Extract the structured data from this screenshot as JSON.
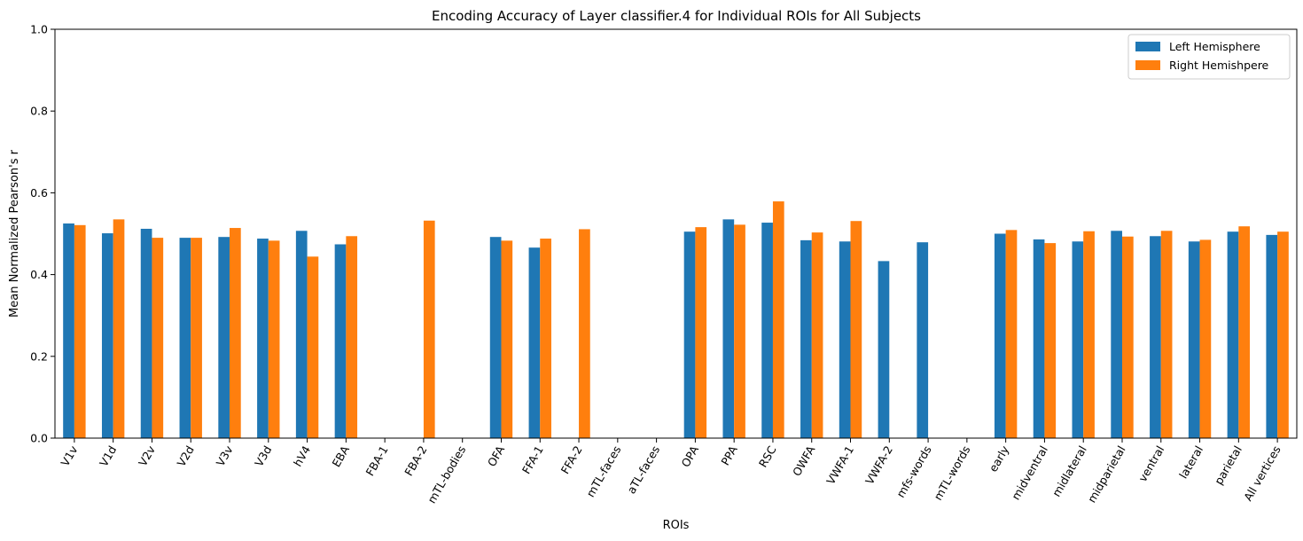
{
  "chart_data": {
    "type": "bar",
    "title": "Encoding Accuracy of Layer classifier.4 for Individual ROIs for All Subjects",
    "xlabel": "ROIs",
    "ylabel": "Mean Normalized Pearson's r",
    "ylim": [
      0,
      1.0
    ],
    "yticks": [
      "0.0",
      "0.2",
      "0.4",
      "0.6",
      "0.8",
      "1.0"
    ],
    "grid": false,
    "legend_position": "top-right",
    "categories": [
      "V1v",
      "V1d",
      "V2v",
      "V2d",
      "V3v",
      "V3d",
      "hV4",
      "EBA",
      "FBA-1",
      "FBA-2",
      "mTL-bodies",
      "OFA",
      "FFA-1",
      "FFA-2",
      "mTL-faces",
      "aTL-faces",
      "OPA",
      "PPA",
      "RSC",
      "OWFA",
      "VWFA-1",
      "VWFA-2",
      "mfs-words",
      "mTL-words",
      "early",
      "midventral",
      "midlateral",
      "midparietal",
      "ventral",
      "lateral",
      "parietal",
      "All vertices"
    ],
    "series": [
      {
        "name": "Left Hemisphere",
        "color": "#1f77b4",
        "values": [
          0.525,
          0.501,
          0.512,
          0.49,
          0.492,
          0.488,
          0.507,
          0.474,
          null,
          null,
          null,
          0.492,
          0.466,
          null,
          null,
          null,
          0.505,
          0.535,
          0.527,
          0.484,
          0.481,
          0.433,
          0.479,
          null,
          0.5,
          0.486,
          0.481,
          0.507,
          0.494,
          0.481,
          0.505,
          0.497
        ]
      },
      {
        "name": "Right Hemishpere",
        "color": "#ff7f0e",
        "values": [
          0.521,
          0.535,
          0.49,
          0.49,
          0.514,
          0.483,
          0.444,
          0.494,
          null,
          0.532,
          null,
          0.483,
          0.488,
          0.511,
          null,
          null,
          0.516,
          0.522,
          0.579,
          0.503,
          0.531,
          null,
          null,
          null,
          0.509,
          0.477,
          0.506,
          0.493,
          0.507,
          0.485,
          0.518,
          0.505
        ]
      }
    ]
  }
}
